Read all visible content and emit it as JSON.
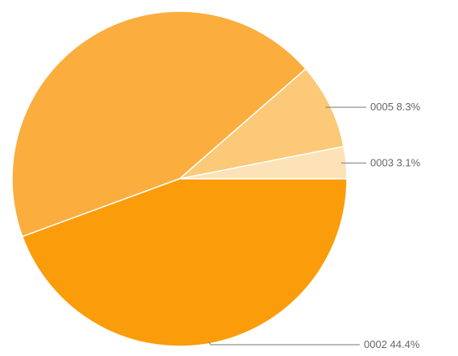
{
  "chart_data": {
    "type": "pie",
    "slices": [
      {
        "label": "0002",
        "value": 44.4,
        "display": "0002 44.4%",
        "color": "#fb9c0a"
      },
      {
        "label": "0003",
        "value": 3.1,
        "display": "0003 3.1%",
        "color": "#fce2b6"
      },
      {
        "label": "0005",
        "value": 8.3,
        "display": "0005 8.3%",
        "color": "#fbc977"
      },
      {
        "label": "",
        "value": 44.2,
        "display": "",
        "color": "#fbad3e"
      }
    ],
    "start_angle_deg": 0,
    "direction": "clockwise-from-east-downward",
    "legend": "none"
  }
}
